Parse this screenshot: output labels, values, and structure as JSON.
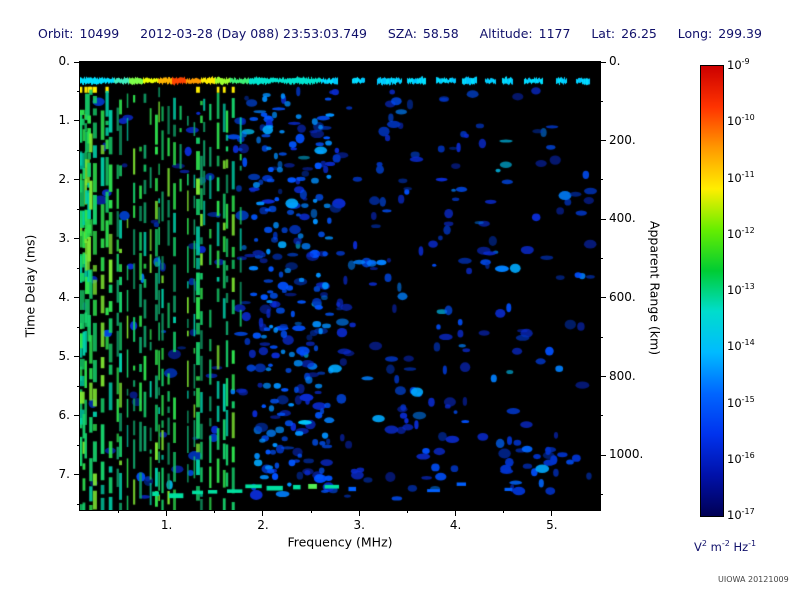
{
  "header": {
    "fields": [
      {
        "label": "Orbit:",
        "value": "10499"
      },
      {
        "label": "",
        "value": "2012-03-28 (Day 088) 23:53:03.749"
      },
      {
        "label": "SZA:",
        "value": "58.58"
      },
      {
        "label": "Altitude:",
        "value": "1177"
      },
      {
        "label": "Lat:",
        "value": "26.25"
      },
      {
        "label": "Long:",
        "value": "299.39"
      }
    ],
    "text_color": "#10106a"
  },
  "watermark": "UIOWA 20121009",
  "chart_data": {
    "type": "heatmap",
    "title": "",
    "xlabel": "Frequency (MHz)",
    "ylabel_left": "Time Delay (ms)",
    "ylabel_right": "Apparent Range (km)",
    "x_range_mhz": [
      0.1,
      5.5
    ],
    "x_tick_values": [
      1,
      2,
      3,
      4,
      5
    ],
    "x_tick_labels": [
      "1.",
      "2.",
      "3.",
      "4.",
      "5."
    ],
    "y_range_ms": [
      0,
      7.6
    ],
    "y_tick_values": [
      0,
      1,
      2,
      3,
      4,
      5,
      6,
      7
    ],
    "y_tick_labels": [
      "0.",
      "1.",
      "2.",
      "3.",
      "4.",
      "5.",
      "6.",
      "7."
    ],
    "right_tick_values_km": [
      0,
      200,
      400,
      600,
      800,
      1000
    ],
    "right_tick_labels": [
      "0.",
      "200.",
      "400.",
      "600.",
      "800.",
      "1000."
    ],
    "km_per_ms": 149.9,
    "background": "#000000",
    "colorbar": {
      "scale": "log",
      "exponents": [
        -9,
        -10,
        -11,
        -12,
        -13,
        -14,
        -15,
        -16,
        -17
      ],
      "unit": "V^2 m^-2 Hz^-1",
      "gradient": [
        "#cc0000",
        "#ff3300",
        "#ff9900",
        "#ffee00",
        "#66ee00",
        "#00cc33",
        "#00ddcc",
        "#00bbff",
        "#0066ff",
        "#0033ee",
        "#0011aa",
        "#000055"
      ]
    },
    "features": {
      "surface_echo_band": {
        "delay_ms": 0.32,
        "freq_start_mhz": 0.1,
        "solid_until_mhz": 2.6,
        "freq_end_mhz": 5.5,
        "hot_color_range_mhz": [
          0.6,
          1.7
        ]
      },
      "ionospheric_striations": {
        "freq_start_mhz": 0.105,
        "freq_end_mhz": 1.78,
        "approx_line_spacing_mhz": 0.05
      },
      "noise_blobs": {
        "count": 430
      },
      "blob_columns": {
        "count": 12,
        "freq_start_mhz": 1.78,
        "freq_end_mhz": 2.75
      },
      "second_echo_arc": {
        "delay_ms": 7.2,
        "freq_start_mhz": 0.85,
        "freq_end_mhz": 2.72
      },
      "highlight_spots": [
        [
          2.05,
          1.15
        ],
        [
          2.3,
          2.4
        ],
        [
          4.62,
          3.5
        ],
        [
          3.2,
          6.05
        ],
        [
          2.75,
          5.2
        ],
        [
          1.95,
          6.8
        ],
        [
          3.6,
          5.6
        ],
        [
          4.9,
          6.9
        ],
        [
          2.2,
          3.1
        ],
        [
          2.6,
          1.5
        ]
      ],
      "bottom_right_cluster": {
        "freq_mhz": [
          4.35,
          5.3
        ],
        "delay_ms": [
          6.4,
          7.35
        ],
        "count": 22
      }
    },
    "render_seed": 20121009
  }
}
